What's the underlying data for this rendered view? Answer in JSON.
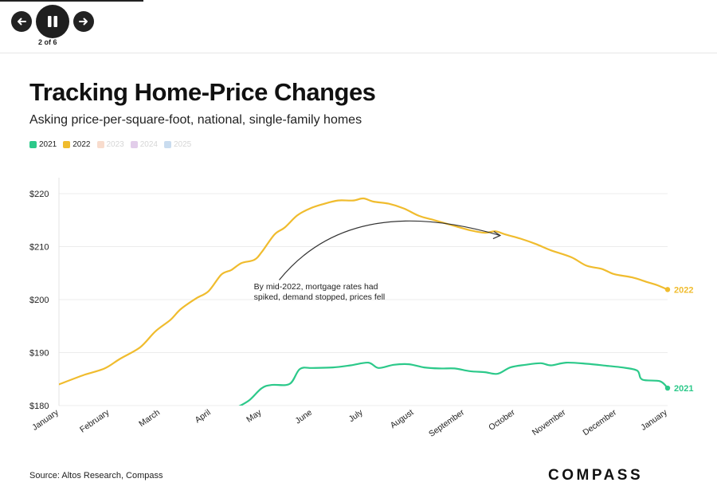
{
  "slideshow": {
    "prev_icon": "arrow-left-icon",
    "pause_icon": "pause-icon",
    "next_icon": "arrow-right-icon",
    "counter": "2 of 6"
  },
  "header": {
    "title": "Tracking Home-Price Changes",
    "subtitle": "Asking price-per-square-foot, national, single-family homes"
  },
  "legend": [
    {
      "label": "2021",
      "color": "#2cc98a",
      "active": true
    },
    {
      "label": "2022",
      "color": "#f0bc2e",
      "active": true
    },
    {
      "label": "2023",
      "color": "#f8dccd",
      "active": false
    },
    {
      "label": "2024",
      "color": "#e2cdea",
      "active": false
    },
    {
      "label": "2025",
      "color": "#c9dcef",
      "active": false
    }
  ],
  "chart_data": {
    "type": "line",
    "x_unit": "month",
    "x_ticks": [
      "January",
      "February",
      "March",
      "April",
      "May",
      "June",
      "July",
      "August",
      "September",
      "October",
      "November",
      "December",
      "January"
    ],
    "y_ticks": [
      {
        "value": 180,
        "label": "$180"
      },
      {
        "value": 190,
        "label": "$190"
      },
      {
        "value": 200,
        "label": "$200"
      },
      {
        "value": 210,
        "label": "$210"
      },
      {
        "value": 220,
        "label": "$220"
      }
    ],
    "ylim": [
      180,
      223
    ],
    "grid": true,
    "series": [
      {
        "name": "2022",
        "color": "#f0bc2e",
        "end_label": "2022",
        "points": [
          [
            0,
            184.0
          ],
          [
            0.5,
            185.8
          ],
          [
            0.9,
            187.0
          ],
          [
            1.2,
            188.8
          ],
          [
            1.6,
            191.0
          ],
          [
            1.9,
            194.0
          ],
          [
            2.2,
            196.2
          ],
          [
            2.4,
            198.2
          ],
          [
            2.7,
            200.2
          ],
          [
            2.95,
            201.6
          ],
          [
            3.2,
            204.7
          ],
          [
            3.4,
            205.6
          ],
          [
            3.6,
            206.9
          ],
          [
            3.85,
            207.5
          ],
          [
            4.0,
            209.0
          ],
          [
            4.25,
            212.3
          ],
          [
            4.45,
            213.6
          ],
          [
            4.7,
            215.9
          ],
          [
            4.95,
            217.2
          ],
          [
            5.2,
            218.0
          ],
          [
            5.5,
            218.7
          ],
          [
            5.8,
            218.7
          ],
          [
            6.0,
            219.1
          ],
          [
            6.2,
            218.5
          ],
          [
            6.5,
            218.1
          ],
          [
            6.8,
            217.2
          ],
          [
            7.1,
            215.8
          ],
          [
            7.4,
            215.0
          ],
          [
            7.8,
            213.9
          ],
          [
            8.1,
            213.1
          ],
          [
            8.4,
            212.6
          ],
          [
            8.6,
            212.9
          ],
          [
            8.8,
            212.3
          ],
          [
            9.1,
            211.5
          ],
          [
            9.4,
            210.5
          ],
          [
            9.7,
            209.3
          ],
          [
            10.1,
            208.0
          ],
          [
            10.4,
            206.4
          ],
          [
            10.7,
            205.8
          ],
          [
            10.95,
            204.8
          ],
          [
            11.3,
            204.2
          ],
          [
            11.6,
            203.3
          ],
          [
            11.8,
            202.7
          ],
          [
            12.0,
            201.9
          ]
        ]
      },
      {
        "name": "2021",
        "color": "#2cc98a",
        "end_label": "2021",
        "points": [
          [
            3.5,
            179.6
          ],
          [
            3.75,
            181.0
          ],
          [
            4.0,
            183.3
          ],
          [
            4.2,
            183.9
          ],
          [
            4.55,
            184.1
          ],
          [
            4.75,
            186.9
          ],
          [
            5.0,
            187.1
          ],
          [
            5.4,
            187.2
          ],
          [
            5.75,
            187.6
          ],
          [
            6.1,
            188.1
          ],
          [
            6.3,
            187.1
          ],
          [
            6.6,
            187.7
          ],
          [
            6.9,
            187.8
          ],
          [
            7.2,
            187.2
          ],
          [
            7.5,
            187.0
          ],
          [
            7.8,
            187.0
          ],
          [
            8.1,
            186.5
          ],
          [
            8.4,
            186.3
          ],
          [
            8.65,
            186.0
          ],
          [
            8.9,
            187.2
          ],
          [
            9.2,
            187.7
          ],
          [
            9.5,
            188.0
          ],
          [
            9.7,
            187.6
          ],
          [
            10.0,
            188.1
          ],
          [
            10.4,
            187.9
          ],
          [
            10.8,
            187.5
          ],
          [
            11.1,
            187.2
          ],
          [
            11.4,
            186.6
          ],
          [
            11.5,
            184.9
          ],
          [
            11.85,
            184.6
          ],
          [
            12.0,
            183.3
          ]
        ]
      }
    ],
    "annotation": {
      "lines": [
        "By mid-2022, mortgage rates had",
        "spiked, demand stopped, prices fell"
      ],
      "text_x": 4.0,
      "text_y": 201.5,
      "arrow_start": [
        4.5,
        202.5
      ],
      "arrow_end": [
        8.7,
        212.1
      ]
    }
  },
  "footer": {
    "source": "Source: Altos Research, Compass",
    "logo": "COMPASS"
  }
}
